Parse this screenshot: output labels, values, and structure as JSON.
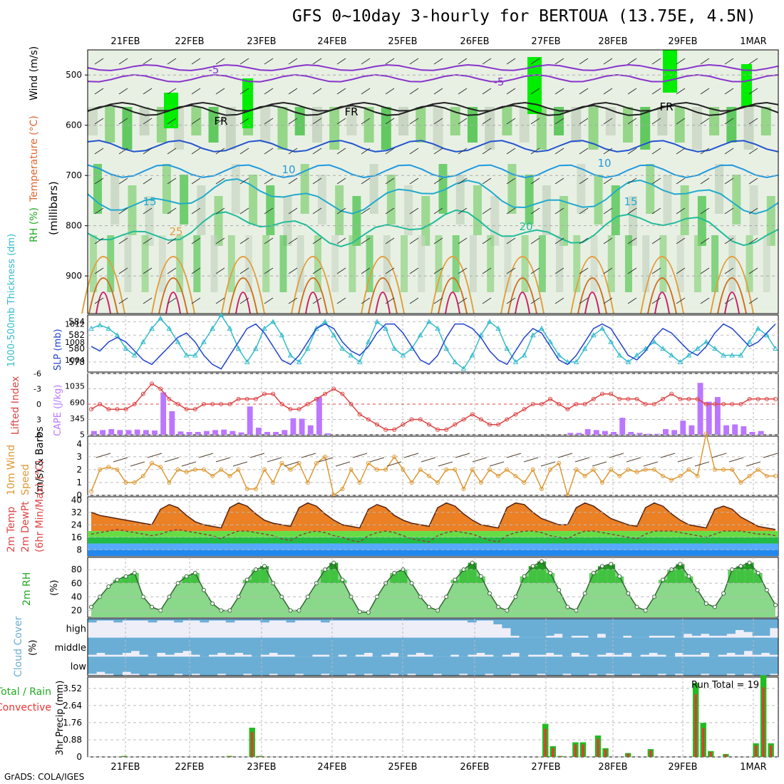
{
  "title": "GFS 0~10day 3-hourly for BERTOUA (13.75E, 4.5N)",
  "credit": "GrADS: COLA/IGES",
  "chart_data": {
    "type": "meteogram",
    "dates": [
      "21FEB",
      "22FEB",
      "23FEB",
      "24FEB",
      "25FEB",
      "26FEB",
      "27FEB",
      "28FEB",
      "29FEB",
      "1MAR"
    ],
    "colors": {
      "rh": "#22cc22",
      "cape": "#bb77ff",
      "lifted": "#dd4444",
      "slp": "#2244cc",
      "thick": "#33bbcc",
      "wind": "#dd9933",
      "rain": "#22bb22",
      "conv": "#ee3333",
      "cloud": "#6aaed6"
    },
    "panels": [
      {
        "id": "upper",
        "type": "contour",
        "ylabel_parts": [
          "RH (%)",
          "Temperature (°C)",
          "Wind (m/s)"
        ],
        "ylabel2": "(millibars)",
        "yticks": [
          500,
          600,
          700,
          800,
          900
        ],
        "ylim": [
          450,
          975
        ],
        "contour_labels": [
          "-5",
          "-5",
          "FR",
          "FR",
          "FR",
          "10",
          "10",
          "15",
          "15",
          "25",
          "20"
        ]
      },
      {
        "id": "slp",
        "type": "line",
        "ylabel_left": "1000-500mb Thickness (dm)",
        "ylabel_right": "SLP (mb)",
        "left_ticks": [
          578,
          580,
          582,
          584
        ],
        "right_ticks": [
          1004,
          1008,
          1012
        ],
        "ylim_thick": [
          576.5,
          585
        ],
        "ylim_slp": [
          1001.3,
          1014
        ],
        "series": [
          {
            "axis": "thick",
            "values": [
              583,
              583.5,
              583,
              582,
              580,
              579,
              581,
              583,
              584.5,
              583,
              581,
              579,
              579,
              581,
              583,
              585,
              583,
              580,
              578,
              580,
              583,
              584,
              582,
              579,
              578,
              580,
              583,
              584,
              582,
              580,
              579,
              578,
              581,
              584,
              583,
              580,
              579,
              580,
              582,
              584,
              583,
              580,
              578,
              577,
              579,
              582,
              584,
              583,
              580,
              578,
              579,
              582,
              583,
              581,
              579,
              578,
              578,
              580,
              582,
              583,
              581,
              579,
              578,
              579,
              580,
              581,
              580,
              579,
              578,
              579,
              580,
              581,
              580,
              579,
              579,
              579,
              581,
              583,
              582,
              580
            ]
          },
          {
            "axis": "slp",
            "values": [
              1007,
              1006,
              1008,
              1009,
              1008,
              1006,
              1004,
              1003,
              1005,
              1007,
              1009,
              1010,
              1008,
              1005,
              1003,
              1002,
              1005,
              1008,
              1011,
              1012,
              1010,
              1007,
              1004,
              1003,
              1005,
              1008,
              1011,
              1012,
              1011,
              1008,
              1006,
              1005,
              1007,
              1010,
              1012,
              1012,
              1010,
              1007,
              1004,
              1003,
              1005,
              1009,
              1012,
              1012,
              1011,
              1009,
              1006,
              1004,
              1003,
              1006,
              1009,
              1011,
              1010,
              1007,
              1004,
              1003,
              1005,
              1008,
              1011,
              1012,
              1011,
              1008,
              1005,
              1004,
              1006,
              1009,
              1011,
              1010,
              1008,
              1006,
              1005,
              1007,
              1010,
              1012,
              1011,
              1009,
              1007,
              1008,
              1010,
              1012
            ]
          }
        ]
      },
      {
        "id": "cape",
        "type": "bar+line",
        "ylabel_left": "Lifted Index",
        "ylabel_right": "CAPE (J/kg)",
        "li_ticks": [
          "-6",
          "-3",
          "0",
          "3",
          "6"
        ],
        "cape_ticks": [
          "5",
          "345",
          "690",
          "1035"
        ],
        "cape_ylim": [
          0,
          1300
        ],
        "li_ylim": [
          6,
          -6
        ],
        "cape": [
          80,
          100,
          120,
          100,
          100,
          110,
          100,
          90,
          900,
          500,
          70,
          60,
          60,
          80,
          100,
          110,
          80,
          50,
          600,
          150,
          60,
          60,
          100,
          350,
          340,
          200,
          800,
          30,
          0,
          0,
          0,
          0,
          0,
          0,
          0,
          0,
          0,
          0,
          0,
          0,
          0,
          0,
          0,
          0,
          0,
          0,
          0,
          0,
          0,
          0,
          0,
          0,
          0,
          0,
          0,
          40,
          40,
          120,
          100,
          80,
          60,
          360,
          60,
          40,
          20,
          20,
          120,
          100,
          300,
          200,
          1100,
          700,
          800,
          200,
          220,
          180,
          60,
          80,
          0
        ],
        "lifted": [
          1,
          0,
          1,
          1,
          1,
          0,
          -2,
          -4,
          -3,
          -1,
          0,
          1,
          1,
          0,
          0,
          0,
          0,
          -1,
          -1,
          -1,
          -2,
          -2,
          0,
          1,
          1,
          0,
          -1,
          -2,
          -3,
          -2,
          0,
          2,
          3,
          4,
          5,
          5,
          4,
          3,
          3,
          4,
          5,
          5,
          4,
          3,
          2,
          3,
          4,
          4,
          3,
          2,
          1,
          0,
          0,
          -1,
          0,
          1,
          0,
          0,
          -1,
          -2,
          -2,
          -1,
          -1,
          -1,
          0,
          0,
          -1,
          -2,
          -1,
          -1,
          -1,
          0,
          0,
          0,
          0,
          0,
          -1,
          -1,
          -1,
          -1
        ]
      },
      {
        "id": "wind",
        "type": "line",
        "ylabel_parts": [
          "10m Wind",
          "Speed",
          "(m/s) & Barbs"
        ],
        "yticks": [
          0,
          1,
          2,
          3,
          4
        ],
        "ylim": [
          0,
          4.6
        ],
        "values": [
          0.3,
          2,
          2.2,
          2,
          1,
          1,
          1.5,
          2.5,
          2.2,
          1,
          2,
          1.8,
          2,
          2,
          1.5,
          2,
          1.5,
          2,
          0.5,
          0.5,
          2,
          1,
          2.5,
          2,
          2.5,
          1,
          2.5,
          3,
          0,
          0.5,
          2,
          1,
          2.5,
          2,
          2,
          3,
          2,
          1,
          2,
          1.5,
          1,
          2,
          2,
          0.5,
          2,
          1,
          2,
          1.5,
          2,
          1.5,
          1,
          2,
          0.5,
          2,
          2.5,
          0,
          2,
          1.5,
          2,
          1,
          2,
          1.5,
          2,
          1.8,
          2,
          2,
          1.5,
          1.2,
          1.5,
          2,
          1.5,
          4.8,
          2,
          2,
          2,
          1,
          1.5,
          2,
          1.5,
          1.5
        ]
      },
      {
        "id": "temp",
        "type": "area",
        "ylabel_parts": [
          "2m Temp",
          "2m DewPt",
          "(6hr Min/Max) (°C)"
        ],
        "yticks": [
          8,
          16,
          24,
          32,
          40
        ],
        "ylim": [
          4,
          42
        ],
        "temp": [
          32,
          30,
          29,
          28,
          27,
          26,
          25,
          24,
          34,
          37,
          35,
          30,
          26,
          24,
          23,
          22,
          35,
          38,
          36,
          31,
          27,
          25,
          24,
          23,
          35,
          38,
          36,
          31,
          27,
          24,
          23,
          22,
          34,
          37,
          35,
          30,
          27,
          25,
          24,
          23,
          35,
          38,
          36,
          31,
          27,
          24,
          23,
          22,
          35,
          38,
          37,
          32,
          28,
          26,
          24,
          24,
          35,
          38,
          36,
          32,
          28,
          26,
          24,
          23,
          35,
          38,
          36,
          31,
          27,
          24,
          23,
          22,
          34,
          36,
          34,
          29,
          26,
          23,
          22,
          21
        ],
        "dewpt": [
          18,
          19,
          20,
          21,
          20,
          19,
          18,
          17,
          18,
          20,
          21,
          20,
          19,
          18,
          17,
          15,
          18,
          20,
          20,
          19,
          18,
          17,
          15,
          14,
          17,
          19,
          20,
          19,
          17,
          16,
          14,
          13,
          17,
          19,
          20,
          19,
          17,
          15,
          14,
          13,
          17,
          19,
          20,
          19,
          18,
          16,
          14,
          13,
          17,
          19,
          20,
          20,
          19,
          17,
          16,
          15,
          18,
          20,
          20,
          19,
          18,
          17,
          16,
          15,
          18,
          20,
          20,
          20,
          19,
          18,
          17,
          16,
          18,
          20,
          20,
          20,
          19,
          18,
          18,
          17
        ]
      },
      {
        "id": "rh",
        "type": "area",
        "ylabel": "2m RH",
        "yunit": "(%)",
        "yticks": [
          20,
          40,
          60,
          80
        ],
        "ylim": [
          10,
          98
        ],
        "values": [
          25,
          40,
          55,
          65,
          70,
          75,
          40,
          25,
          20,
          40,
          60,
          70,
          75,
          50,
          30,
          20,
          20,
          40,
          65,
          80,
          85,
          60,
          40,
          20,
          20,
          40,
          60,
          80,
          90,
          65,
          40,
          18,
          17,
          40,
          60,
          75,
          80,
          60,
          40,
          25,
          20,
          40,
          65,
          80,
          90,
          70,
          45,
          25,
          20,
          40,
          70,
          85,
          92,
          75,
          50,
          25,
          20,
          45,
          75,
          85,
          88,
          70,
          45,
          25,
          20,
          40,
          65,
          80,
          88,
          70,
          50,
          30,
          25,
          45,
          80,
          85,
          90,
          75,
          50,
          28
        ]
      },
      {
        "id": "cloud",
        "type": "heatmap",
        "ylabel": "Cloud Cover",
        "yunit": "(%)",
        "rows": [
          {
            "name": "high",
            "values": [
              0.2,
              0.1,
              0.1,
              0.2,
              0.1,
              0.1,
              0.1,
              0.2,
              0.1,
              0.1,
              0.2,
              0.1,
              0.1,
              0.2,
              0.1,
              0.1,
              0.2,
              0.1,
              0.1,
              0.1,
              0.2,
              0.1,
              0.1,
              0.2,
              0.1,
              0.1,
              0.1,
              0.2,
              0.1,
              0.1,
              0.1,
              0.1,
              0.1,
              0.1,
              0.1,
              0.1,
              0.1,
              0.1,
              0.1,
              0.1,
              0.1,
              0.1,
              0.1,
              0.1,
              0.2,
              0.1,
              0.1,
              0.3,
              0.5,
              0.9,
              1,
              1,
              1,
              0.9,
              0.8,
              1,
              0.9,
              0.9,
              1,
              0.8,
              1,
              1,
              0.9,
              1,
              1,
              0.9,
              0.9,
              0.9,
              1,
              0.8,
              0.9,
              0.8,
              0.9,
              0.9,
              0.8,
              0.6,
              0.7,
              0.9,
              0.9,
              0.5
            ]
          },
          {
            "name": "middle",
            "values": [
              0.9,
              0.8,
              0.9,
              0.9,
              0.8,
              0.7,
              0.9,
              1,
              0.8,
              0.9,
              0.8,
              0.7,
              0.9,
              1,
              0.9,
              0.8,
              0.9,
              0.8,
              0.9,
              1,
              0.9,
              0.8,
              0.9,
              0.9,
              1,
              1,
              0.9,
              0.9,
              1,
              0.9,
              1,
              0.9,
              0.8,
              1,
              0.9,
              0.8,
              1,
              0.9,
              0.8,
              0.9,
              1,
              1,
              0.9,
              1,
              0.9,
              0.8,
              0.9,
              1,
              0.9,
              0.8,
              1,
              0.9,
              0.9,
              0.8,
              0.9,
              1,
              0.8,
              0.9,
              1,
              0.9,
              0.8,
              0.9,
              0.8,
              1,
              0.9,
              0.8,
              0.9,
              1,
              0.8,
              0.9,
              0.9,
              0.8,
              1,
              0.9,
              0.8,
              0.9,
              0.7,
              0.9,
              0.8,
              0.9
            ]
          },
          {
            "name": "low",
            "values": [
              0.9,
              0.8,
              0.9,
              1,
              0.8,
              0.9,
              1,
              0.9,
              1,
              1,
              0.9,
              1,
              0.9,
              1,
              1,
              0.9,
              1,
              1,
              0.9,
              1,
              1,
              0.9,
              1,
              1,
              0.9,
              1,
              1,
              0.9,
              1,
              1,
              0.9,
              1,
              0.9,
              1,
              1,
              0.9,
              1,
              0.9,
              1,
              1,
              0.9,
              1,
              1,
              0.9,
              1,
              1,
              0.9,
              1,
              1,
              0.9,
              1,
              1,
              0.9,
              1,
              1,
              0.9,
              1,
              1,
              0.9,
              1,
              0.9,
              1,
              1,
              0.9,
              1,
              1,
              0.9,
              1,
              0.9,
              1,
              1,
              0.9,
              1,
              1,
              0.9,
              1,
              0.9,
              1,
              1,
              0.9
            ]
          }
        ]
      },
      {
        "id": "precip",
        "type": "bar",
        "ylabel_left": "Total / Rain",
        "ylabel_left2": "Convective",
        "ylabel": "3hr Precip (mm)",
        "yticks": [
          "0",
          "0.88",
          "1.76",
          "2.64",
          "3.52"
        ],
        "ylim": [
          0,
          4.1
        ],
        "run_total_label": "Run Total =",
        "run_total": "19",
        "total": [
          0,
          0,
          0,
          0,
          0.05,
          0,
          0,
          0,
          0,
          0,
          0,
          0,
          0,
          0,
          0,
          0,
          0,
          0,
          0.05,
          0,
          0,
          1.5,
          0.05,
          0,
          0,
          0,
          0,
          0,
          0,
          0,
          0,
          0,
          0,
          0,
          0,
          0,
          0,
          0,
          0,
          0,
          0,
          0,
          0,
          0,
          0,
          0,
          0,
          0,
          0,
          0,
          0,
          0,
          0,
          0,
          0,
          0,
          0,
          0,
          0,
          0,
          1.7,
          0.55,
          0.05,
          0,
          0.75,
          0.75,
          0,
          1.1,
          0.45,
          0,
          0,
          0.2,
          0,
          0,
          0.4,
          0,
          0,
          0,
          0,
          0,
          3.8,
          1.75,
          0.3,
          0,
          0.15,
          0,
          0,
          0,
          0.7,
          4.2,
          0.7
        ]
      }
    ]
  }
}
